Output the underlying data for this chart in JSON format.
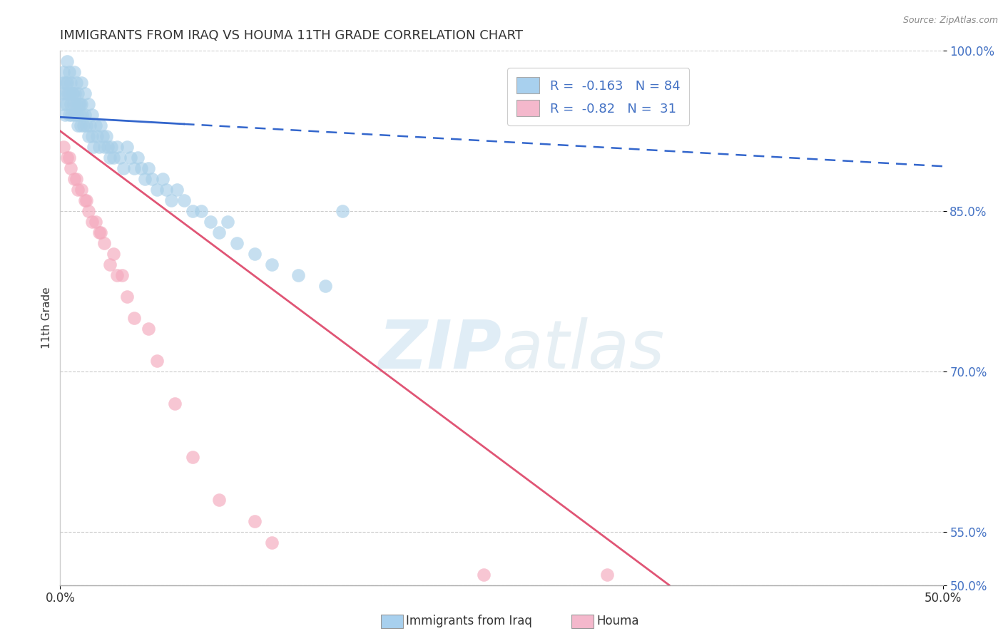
{
  "title": "IMMIGRANTS FROM IRAQ VS HOUMA 11TH GRADE CORRELATION CHART",
  "source": "Source: ZipAtlas.com",
  "ylabel_label": "11th Grade",
  "xmin": 0.0,
  "xmax": 50.0,
  "ymin": 50.0,
  "ymax": 100.0,
  "yticks": [
    50.0,
    55.0,
    70.0,
    85.0,
    100.0
  ],
  "ytick_labels": [
    "50.0%",
    "55.0%",
    "70.0%",
    "85.0%",
    "100.0%"
  ],
  "xticks": [
    0.0,
    50.0
  ],
  "xtick_labels": [
    "0.0%",
    "50.0%"
  ],
  "blue_label": "Immigrants from Iraq",
  "pink_label": "Houma",
  "blue_R": -0.163,
  "blue_N": 84,
  "pink_R": -0.82,
  "pink_N": 31,
  "blue_color": "#a8cfe8",
  "pink_color": "#f4a8bc",
  "blue_line_color": "#3366cc",
  "pink_line_color": "#e05575",
  "blue_legend_color": "#a8d0ee",
  "pink_legend_color": "#f4b8cc",
  "blue_solid_end_x": 7.0,
  "blue_trend_x0": 0.0,
  "blue_trend_x1": 50.0,
  "blue_trend_y0": 93.8,
  "blue_trend_y1": 89.2,
  "pink_trend_x0": 0.0,
  "pink_trend_x1": 34.5,
  "pink_trend_y0": 92.5,
  "pink_trend_y1": 50.0,
  "blue_points_x": [
    0.1,
    0.15,
    0.2,
    0.25,
    0.3,
    0.35,
    0.4,
    0.45,
    0.5,
    0.55,
    0.6,
    0.65,
    0.7,
    0.75,
    0.8,
    0.85,
    0.9,
    0.95,
    1.0,
    1.05,
    1.1,
    1.15,
    1.2,
    1.25,
    1.3,
    1.4,
    1.5,
    1.6,
    1.7,
    1.8,
    1.9,
    2.0,
    2.1,
    2.2,
    2.3,
    2.4,
    2.5,
    2.6,
    2.7,
    2.8,
    2.9,
    3.0,
    3.2,
    3.4,
    3.6,
    3.8,
    4.0,
    4.2,
    4.4,
    4.6,
    4.8,
    5.0,
    5.2,
    5.5,
    5.8,
    6.0,
    6.3,
    6.6,
    7.0,
    7.5,
    8.0,
    8.5,
    9.0,
    9.5,
    10.0,
    11.0,
    12.0,
    13.5,
    15.0,
    16.0,
    0.2,
    0.3,
    0.4,
    0.5,
    0.6,
    0.7,
    0.8,
    0.9,
    1.0,
    1.1,
    1.2,
    1.4,
    1.6,
    1.8
  ],
  "blue_points_y": [
    96,
    95,
    97,
    94,
    96,
    95,
    97,
    96,
    94,
    96,
    95,
    94,
    96,
    95,
    94,
    96,
    95,
    94,
    93,
    95,
    94,
    93,
    95,
    94,
    93,
    94,
    93,
    92,
    93,
    92,
    91,
    93,
    92,
    91,
    93,
    92,
    91,
    92,
    91,
    90,
    91,
    90,
    91,
    90,
    89,
    91,
    90,
    89,
    90,
    89,
    88,
    89,
    88,
    87,
    88,
    87,
    86,
    87,
    86,
    85,
    85,
    84,
    83,
    84,
    82,
    81,
    80,
    79,
    78,
    85,
    98,
    97,
    99,
    98,
    97,
    96,
    98,
    97,
    96,
    95,
    97,
    96,
    95,
    94
  ],
  "pink_points_x": [
    0.2,
    0.4,
    0.6,
    0.8,
    1.0,
    1.2,
    1.4,
    1.6,
    1.8,
    2.0,
    2.2,
    2.5,
    2.8,
    3.2,
    3.8,
    4.2,
    5.0,
    5.5,
    6.5,
    7.5,
    9.0,
    11.0,
    12.0,
    0.5,
    0.9,
    1.5,
    2.3,
    3.0,
    3.5,
    24.0,
    31.0
  ],
  "pink_points_y": [
    91,
    90,
    89,
    88,
    87,
    87,
    86,
    85,
    84,
    84,
    83,
    82,
    80,
    79,
    77,
    75,
    74,
    71,
    67,
    62,
    58,
    56,
    54,
    90,
    88,
    86,
    83,
    81,
    79,
    51,
    51
  ],
  "watermark_zip": "ZIP",
  "watermark_atlas": "atlas",
  "watermark_zip_color": "#c5dff0",
  "watermark_atlas_color": "#c5dce8"
}
